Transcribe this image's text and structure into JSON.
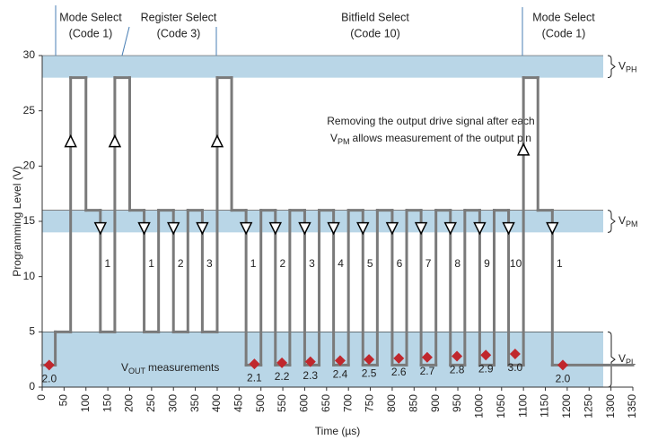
{
  "chart_data": {
    "type": "step",
    "header_labels": [
      [
        "Mode Select",
        "(Code 1)"
      ],
      [
        "Register Select",
        "(Code 3)"
      ],
      [
        "Bitfield Select",
        "(Code 10)"
      ],
      [
        "Mode Select",
        "(Code 1)"
      ]
    ],
    "annotation": [
      "Removing the output drive signal after each",
      "V",
      "PM",
      "allows measurement of the output pin"
    ],
    "xlabel": "Time (µs)",
    "ylabel": "Programming Level (V)",
    "xlim": [
      0,
      1350
    ],
    "xticks": [
      0,
      50,
      100,
      150,
      200,
      250,
      300,
      350,
      400,
      450,
      500,
      550,
      600,
      650,
      700,
      750,
      800,
      850,
      900,
      950,
      1000,
      1050,
      1100,
      1150,
      1200,
      1250,
      1300,
      1350
    ],
    "ylim": [
      0,
      30
    ],
    "yticks": [
      0,
      5,
      10,
      15,
      20,
      25,
      30
    ],
    "band_color": "#b9d6e7",
    "bands": [
      {
        "ylim": [
          28,
          30
        ],
        "label": [
          "V",
          "PH"
        ]
      },
      {
        "ylim": [
          14,
          16
        ],
        "label": [
          "V",
          "PM"
        ]
      },
      {
        "ylim": [
          0,
          5
        ],
        "label": [
          "V",
          "PL"
        ]
      }
    ],
    "band_note": [
      "V",
      "OUT",
      "measurements"
    ],
    "series": [
      {
        "color": "#7a7a7a",
        "edges": [
          0,
          30,
          65,
          100,
          133,
          166,
          200,
          233,
          266,
          300,
          333,
          366,
          400,
          433,
          466,
          500,
          533,
          566,
          600,
          633,
          666,
          700,
          733,
          766,
          800,
          833,
          866,
          900,
          933,
          966,
          1000,
          1033,
          1066,
          1100,
          1133,
          1166,
          1350
        ],
        "values": [
          2,
          5,
          28,
          16,
          5,
          28,
          16,
          5,
          16,
          5,
          16,
          5,
          28,
          16,
          2,
          16,
          2,
          16,
          2,
          16,
          2,
          16,
          2,
          16,
          2,
          16,
          2,
          16,
          2,
          16,
          2,
          16,
          2,
          28,
          16,
          2
        ]
      }
    ],
    "pulse_labels": [
      "1",
      "1",
      "2",
      "3",
      "1",
      "2",
      "3",
      "4",
      "5",
      "6",
      "7",
      "8",
      "9",
      "10",
      "1"
    ],
    "measurements": {
      "color": "#c0272d",
      "x": [
        16,
        485,
        548,
        613,
        681,
        747,
        815,
        880,
        948,
        1014,
        1081,
        1190
      ],
      "values": [
        2.0,
        2.1,
        2.2,
        2.3,
        2.4,
        2.5,
        2.6,
        2.7,
        2.8,
        2.9,
        3.0,
        2.0
      ],
      "value_labels": [
        "2.0",
        "2.1",
        "2.2",
        "2.3",
        "2.4",
        "2.5",
        "2.6",
        "2.7",
        "2.8",
        "2.9",
        "3.0",
        "2.0"
      ]
    }
  }
}
